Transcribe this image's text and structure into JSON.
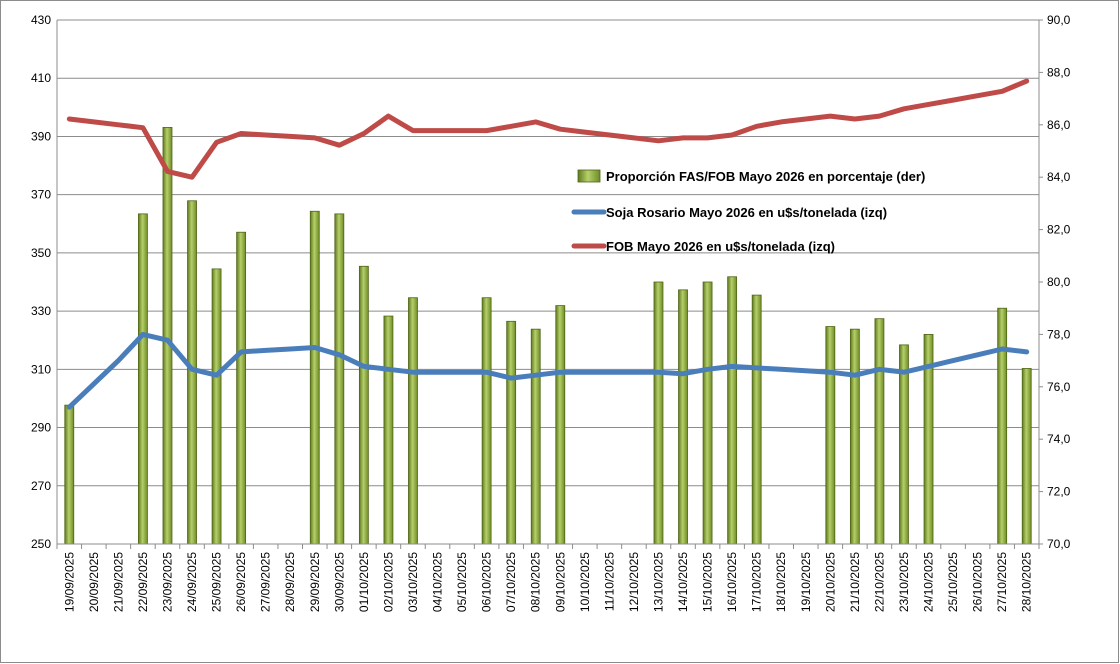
{
  "chart_data": {
    "type": "bar+line",
    "categories": [
      "19/09/2025",
      "20/09/2025",
      "21/09/2025",
      "22/09/2025",
      "23/09/2025",
      "24/09/2025",
      "25/09/2025",
      "26/09/2025",
      "27/09/2025",
      "28/09/2025",
      "29/09/2025",
      "30/09/2025",
      "01/10/2025",
      "02/10/2025",
      "03/10/2025",
      "04/10/2025",
      "05/10/2025",
      "06/10/2025",
      "07/10/2025",
      "08/10/2025",
      "09/10/2025",
      "10/10/2025",
      "11/10/2025",
      "12/10/2025",
      "13/10/2025",
      "14/10/2025",
      "15/10/2025",
      "16/10/2025",
      "17/10/2025",
      "18/10/2025",
      "19/10/2025",
      "20/10/2025",
      "21/10/2025",
      "22/10/2025",
      "23/10/2025",
      "24/10/2025",
      "25/10/2025",
      "26/10/2025",
      "27/10/2025",
      "28/10/2025"
    ],
    "y_left": {
      "ylim": [
        250,
        430
      ],
      "ticks": [
        "250",
        "270",
        "290",
        "310",
        "330",
        "350",
        "370",
        "390",
        "410",
        "430"
      ]
    },
    "y_right": {
      "ylim": [
        70,
        90
      ],
      "ticks": [
        "70,0",
        "72,0",
        "74,0",
        "76,0",
        "78,0",
        "80,0",
        "82,0",
        "84,0",
        "86,0",
        "88,0",
        "90,0"
      ]
    },
    "grid": true,
    "legend_position": "center-right",
    "series": [
      {
        "name": "Proporción FAS/FOB Mayo 2026 en porcentaje (der)",
        "type": "bar",
        "axis": "right",
        "color": "#7a9a2c",
        "values": [
          75.3,
          null,
          null,
          82.6,
          85.9,
          83.1,
          80.5,
          81.9,
          null,
          null,
          82.7,
          82.6,
          80.6,
          78.7,
          79.4,
          null,
          null,
          79.4,
          78.5,
          78.2,
          79.1,
          null,
          null,
          null,
          80.0,
          79.7,
          80.0,
          80.2,
          79.5,
          null,
          null,
          78.3,
          78.2,
          78.6,
          77.6,
          78.0,
          null,
          null,
          79.0,
          76.7
        ]
      },
      {
        "name": "Soja Rosario Mayo 2026 en u$s/tonelada (izq)",
        "type": "line",
        "axis": "left",
        "color": "#4a7ebb",
        "values": [
          297,
          305,
          313,
          322,
          320,
          310,
          308,
          316,
          316.5,
          317,
          317.5,
          315,
          311,
          310,
          309,
          309,
          309,
          309,
          307,
          308,
          309,
          309,
          309,
          309,
          309,
          308.5,
          310,
          311,
          310.5,
          310,
          309.5,
          309,
          308,
          310,
          309,
          311,
          313,
          315,
          317,
          316
        ]
      },
      {
        "name": "FOB Mayo 2026 en u$s/tonelada (izq)",
        "type": "line",
        "axis": "left",
        "color": "#be4b48",
        "values": [
          396,
          395,
          394,
          393,
          378,
          376,
          388,
          391,
          390.5,
          390,
          389.5,
          387,
          391,
          397,
          392,
          392,
          392,
          392,
          393.5,
          395,
          392.5,
          391.5,
          390.5,
          389.5,
          388.5,
          389.5,
          389.5,
          390.5,
          393.5,
          395,
          396,
          397,
          396,
          397,
          399.5,
          401,
          402.5,
          404,
          405.5,
          409
        ]
      }
    ]
  }
}
